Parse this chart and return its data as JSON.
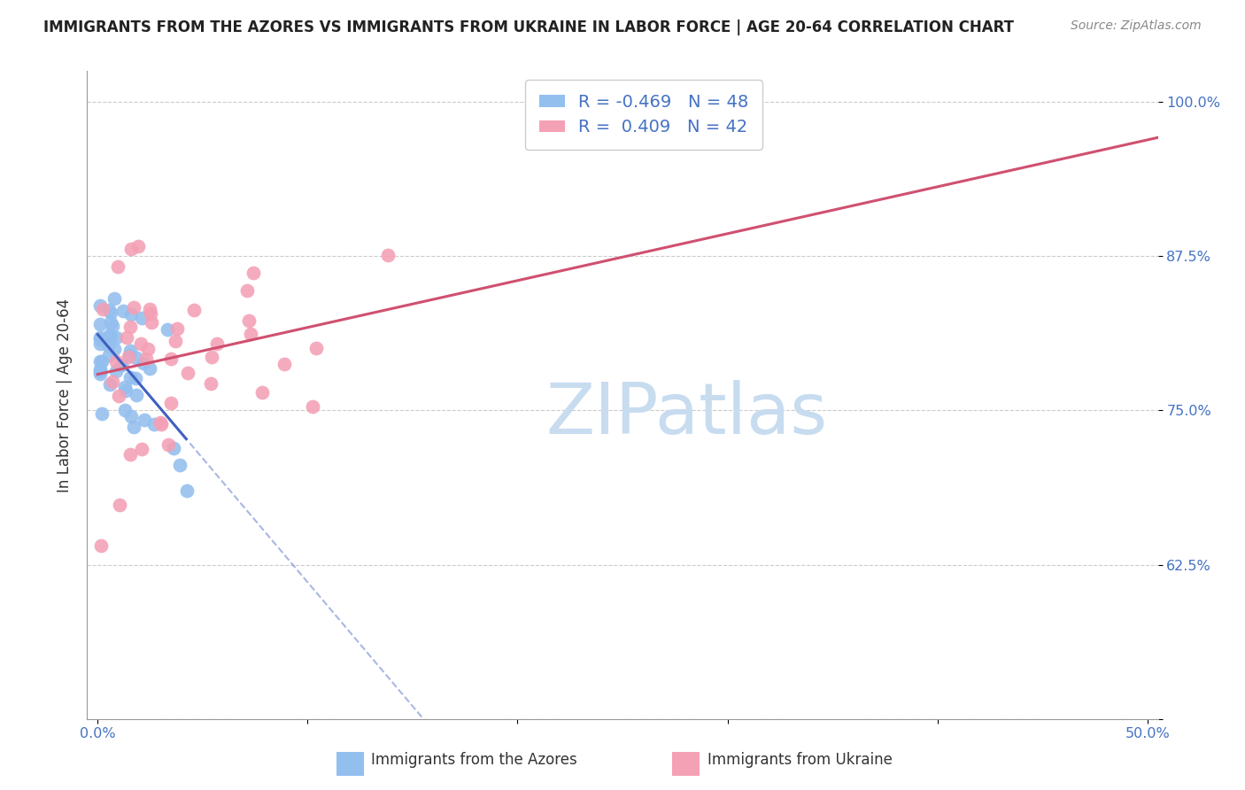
{
  "title": "IMMIGRANTS FROM THE AZORES VS IMMIGRANTS FROM UKRAINE IN LABOR FORCE | AGE 20-64 CORRELATION CHART",
  "source": "Source: ZipAtlas.com",
  "ylabel": "In Labor Force | Age 20-64",
  "xlim": [
    -0.005,
    0.505
  ],
  "ylim": [
    0.5,
    1.025
  ],
  "xtick_positions": [
    0.0,
    0.1,
    0.2,
    0.3,
    0.4,
    0.5
  ],
  "xticklabels": [
    "0.0%",
    "",
    "",
    "",
    "",
    "50.0%"
  ],
  "ytick_positions": [
    0.5,
    0.625,
    0.75,
    0.875,
    1.0
  ],
  "yticklabels": [
    "",
    "62.5%",
    "75.0%",
    "87.5%",
    "100.0%"
  ],
  "azores_R": -0.469,
  "azores_N": 48,
  "ukraine_R": 0.409,
  "ukraine_N": 42,
  "azores_color": "#93BFEF",
  "ukraine_color": "#F4A0B5",
  "azores_line_color": "#4060C0",
  "ukraine_line_color": "#D05070",
  "tick_color": "#4472C4",
  "grid_color": "#CCCCCC",
  "bg_color": "#FFFFFF",
  "title_color": "#222222",
  "source_color": "#888888",
  "watermark_color": "#C8DCF0",
  "legend_label_color": "#4472C4",
  "bottom_label_color": "#333333"
}
